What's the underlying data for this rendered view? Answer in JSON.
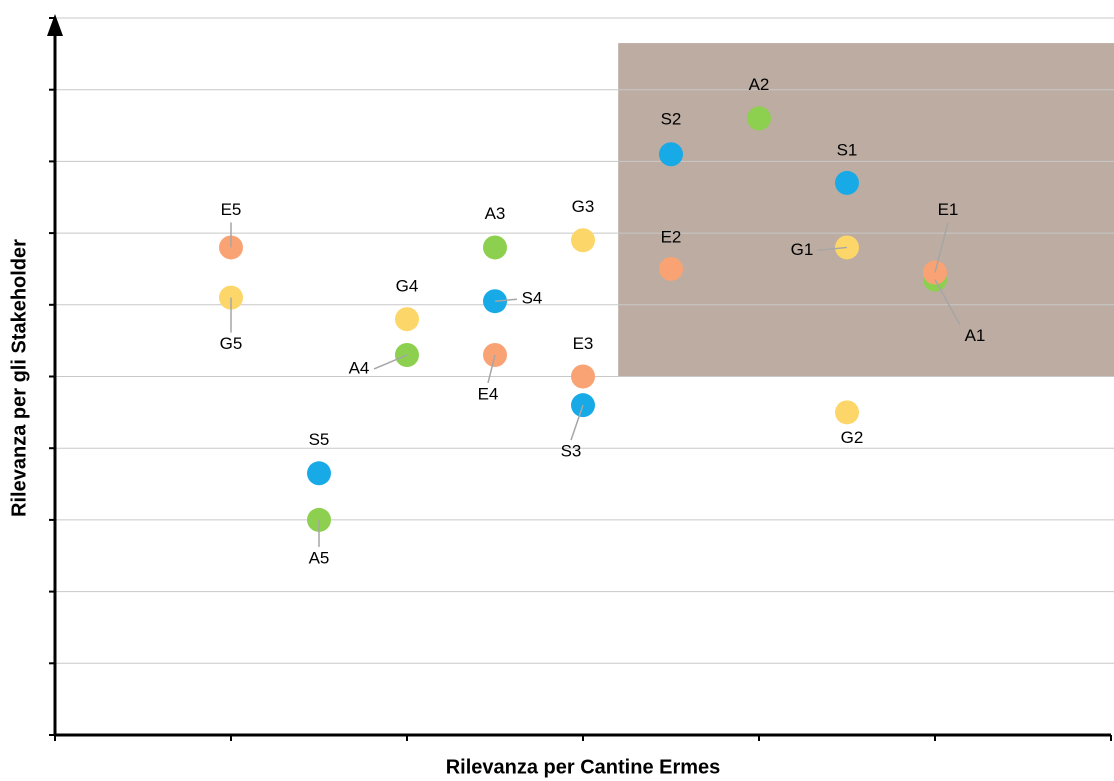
{
  "chart_data": {
    "type": "scatter",
    "x_label": "Rilevanza per Cantine Ermes",
    "y_label": "Rilevanza per gli Stakeholder",
    "xlim": [
      0,
      6
    ],
    "xticks": [
      0,
      1,
      2,
      3,
      4,
      5,
      6
    ],
    "ylim": [
      0,
      10
    ],
    "yticks": [
      0,
      1,
      2,
      3,
      4,
      5,
      6,
      7,
      8,
      9,
      10
    ],
    "grid": true,
    "region": {
      "xlim": [
        3.2,
        6
      ],
      "ylim": [
        5,
        9.65
      ],
      "color": "#bcaca2"
    },
    "series": [
      {
        "color": "#8dcf4f",
        "labels": [
          "A1",
          "A2",
          "A3",
          "A4",
          "A5"
        ],
        "x": [
          5,
          4,
          2.5,
          2,
          1.5
        ],
        "values": [
          6.35,
          8.6,
          6.8,
          5.3,
          3.0
        ]
      },
      {
        "color": "#17aae6",
        "labels": [
          "S1",
          "S2",
          "S3",
          "S4",
          "S5"
        ],
        "x": [
          4.5,
          3.5,
          3,
          2.5,
          1.5
        ],
        "values": [
          7.7,
          8.1,
          4.6,
          6.05,
          3.65
        ]
      },
      {
        "color": "#fdd66a",
        "labels": [
          "G1",
          "G2",
          "G3",
          "G4",
          "G5"
        ],
        "x": [
          4.5,
          4.5,
          3,
          2,
          1
        ],
        "values": [
          6.8,
          4.5,
          6.9,
          5.8,
          6.1
        ]
      },
      {
        "color": "#f9a374",
        "labels": [
          "E1",
          "E2",
          "E3",
          "E4",
          "E5"
        ],
        "x": [
          5,
          3.5,
          3,
          2.5,
          1
        ],
        "values": [
          6.45,
          6.5,
          5.0,
          5.3,
          6.8
        ]
      }
    ]
  }
}
